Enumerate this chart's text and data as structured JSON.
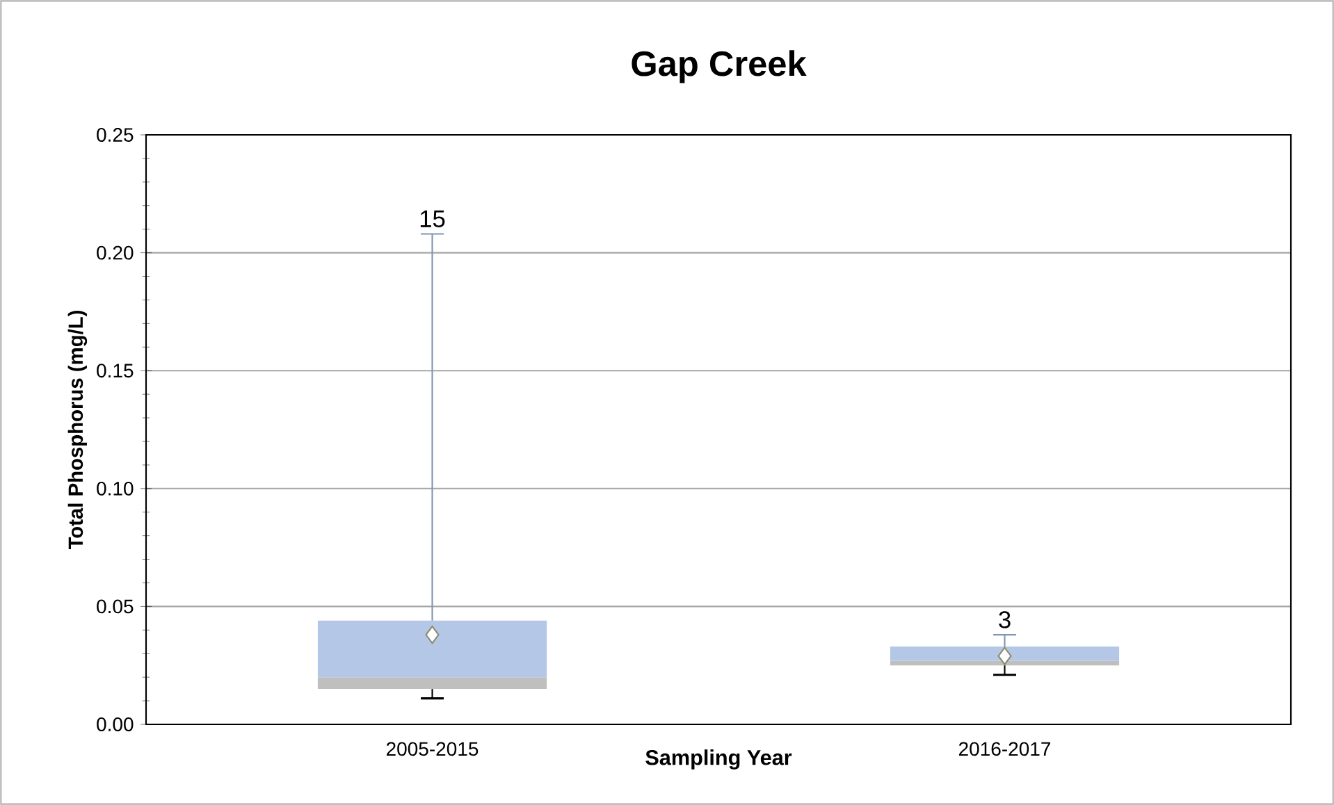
{
  "chart_data": {
    "type": "box",
    "title": "Gap Creek",
    "xlabel": "Sampling Year",
    "ylabel": "Total Phosphorus  (mg/L)",
    "categories": [
      "2005-2015",
      "2016-2017"
    ],
    "boxes": [
      {
        "low": 0.011,
        "q1": 0.015,
        "median": 0.02,
        "q3": 0.044,
        "high": 0.208,
        "mean": 0.038
      },
      {
        "low": 0.021,
        "q1": 0.025,
        "median": 0.027,
        "q3": 0.033,
        "high": 0.038,
        "mean": 0.029
      }
    ],
    "annotations": [
      "15",
      "3"
    ],
    "ylim": [
      0,
      0.25
    ],
    "yticks": [
      {
        "value": 0,
        "label": "0.00"
      },
      {
        "value": 0.05,
        "label": "0.05"
      },
      {
        "value": 0.1,
        "label": "0.10"
      },
      {
        "value": 0.15,
        "label": "0.15"
      },
      {
        "value": 0.2,
        "label": "0.20"
      },
      {
        "value": 0.25,
        "label": "0.25"
      }
    ],
    "grid": "y",
    "marker": "diamond"
  }
}
